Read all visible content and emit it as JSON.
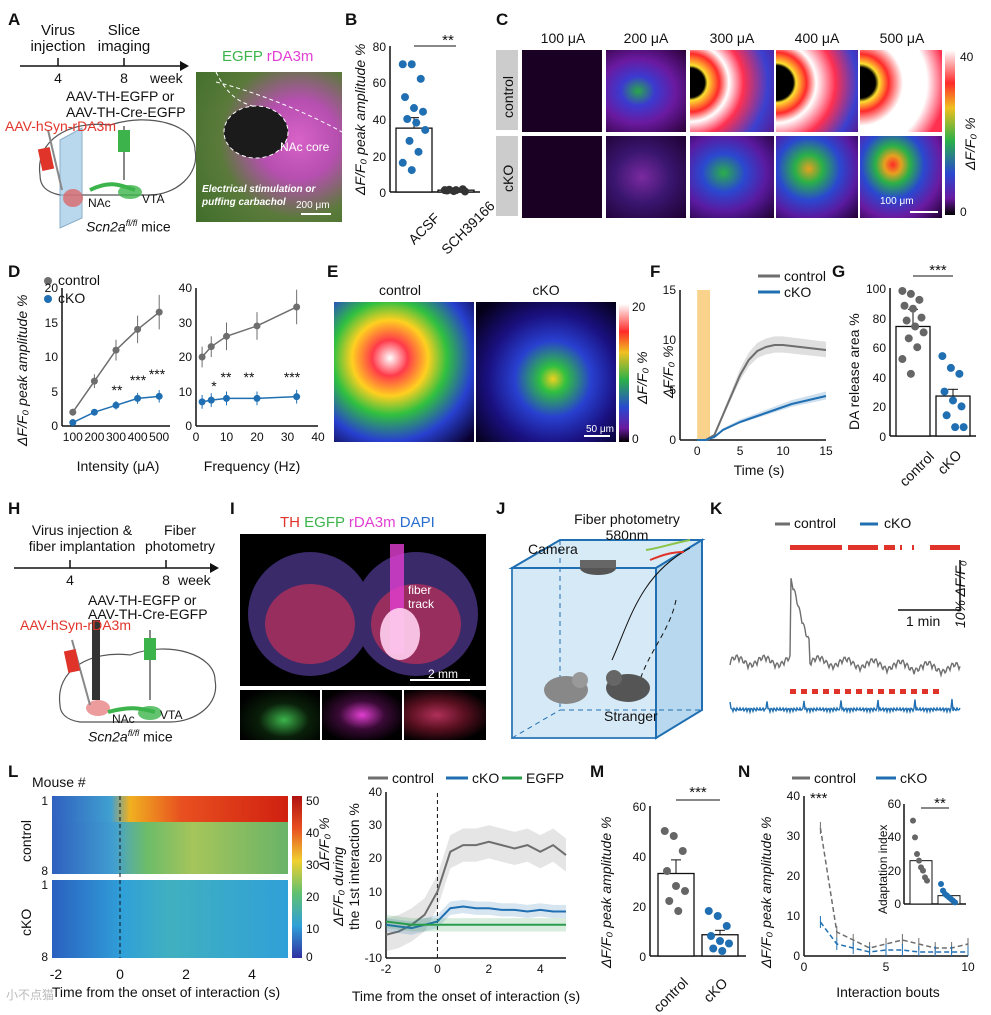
{
  "panels": [
    "A",
    "B",
    "C",
    "D",
    "E",
    "F",
    "G",
    "H",
    "I",
    "J",
    "K",
    "L",
    "M",
    "N"
  ],
  "colors": {
    "control": "#6e6e6e",
    "cko": "#1f6fb2",
    "egfp": "#2a9d4b",
    "red": "#e0342a",
    "magenta": "#e23fd2",
    "green": "#3cb44b",
    "orange": "#f8c76e"
  },
  "a": {
    "timeline": {
      "events": [
        "Virus",
        "injection",
        "Slice",
        "imaging"
      ],
      "ticks": [
        "4",
        "8"
      ],
      "unit": "week"
    },
    "virus_lines": [
      "AAV-TH-EGFP or",
      "AAV-TH-Cre-EGFP"
    ],
    "virus_r": "AAV-hSyn-rDA3m",
    "regions": [
      "NAc",
      "VTA"
    ],
    "mice": "Scn2a",
    "mice_sup": "fl/fl",
    "mice_suffix": " mice",
    "micro": {
      "title_g": "EGFP",
      "title_m": " rDA3m",
      "label": "NAc core",
      "stim": [
        "Electrical stimulation or",
        "puffing carbachol"
      ],
      "scale": "200 μm"
    }
  },
  "b": {
    "ylabel": "ΔF/F₀ peak amplitude %",
    "yticks": [
      "0",
      "20",
      "40",
      "60",
      "80"
    ],
    "groups": [
      "ACSF",
      "SCH39166"
    ],
    "sig": "**",
    "chart_data": {
      "type": "bar",
      "categories": [
        "ACSF",
        "SCH39166"
      ],
      "values": [
        35,
        1
      ],
      "ylim": [
        0,
        80
      ],
      "points": [
        [
          70,
          70,
          62,
          52,
          46,
          44,
          40,
          38,
          34,
          28,
          22,
          16,
          12
        ],
        [
          1,
          0.5,
          1.5,
          0.8,
          1,
          0.3,
          1.2
        ]
      ]
    }
  },
  "c": {
    "cols": [
      "100 μA",
      "200 μA",
      "300 μA",
      "400 μA",
      "500 μA"
    ],
    "rows": [
      "control",
      "cKO"
    ],
    "cbar": [
      "40",
      "0"
    ],
    "cbar_label": "ΔF/F₀ %",
    "scale": "100 μm"
  },
  "d": {
    "legend": [
      "control",
      "cKO"
    ],
    "ylabel": "ΔF/F₀ peak amplitude %",
    "xlabel1": "Intensity (μA)",
    "xlabel2": "Frequency (Hz)",
    "yticks1": [
      "0",
      "5",
      "10",
      "15",
      "20"
    ],
    "xticks1": [
      "100",
      "200",
      "300",
      "400",
      "500"
    ],
    "yticks2": [
      "0",
      "10",
      "20",
      "30",
      "40"
    ],
    "xticks2": [
      "0",
      "10",
      "20",
      "30",
      "40"
    ],
    "sig1": [
      "**",
      "***",
      "***"
    ],
    "sig2": [
      "*",
      "**",
      "**",
      "***"
    ],
    "chart_data": [
      {
        "type": "line",
        "x": [
          100,
          200,
          300,
          400,
          500
        ],
        "series": [
          {
            "name": "control",
            "values": [
              2,
              6.5,
              11,
              14,
              16.5
            ],
            "err": [
              0.5,
              1,
              1.5,
              2,
              2.5
            ]
          },
          {
            "name": "cKO",
            "values": [
              0.5,
              2,
              3,
              4,
              4.3
            ],
            "err": [
              0.3,
              0.4,
              0.6,
              0.8,
              0.9
            ]
          }
        ],
        "ylim": [
          0,
          20
        ]
      },
      {
        "type": "line",
        "x": [
          2,
          5,
          10,
          20,
          33
        ],
        "series": [
          {
            "name": "control",
            "values": [
              20,
              23,
              26,
              29,
              34.5
            ],
            "err": [
              3,
              3,
              4,
              4,
              5
            ]
          },
          {
            "name": "cKO",
            "values": [
              7,
              7.5,
              8,
              8,
              8.5
            ],
            "err": [
              2,
              2,
              2,
              2,
              2
            ]
          }
        ],
        "ylim": [
          0,
          40
        ]
      }
    ]
  },
  "e": {
    "titles": [
      "control",
      "cKO"
    ],
    "cbar": [
      "20",
      "0"
    ],
    "cbar_label": "ΔF/F₀ %",
    "scale": "50 μm"
  },
  "f": {
    "legend": [
      "control",
      "cKO"
    ],
    "ylabel": "ΔF/F₀ %",
    "xlabel": "Time (s)",
    "yticks": [
      "0",
      "5",
      "10",
      "15"
    ],
    "xticks": [
      "0",
      "5",
      "10",
      "15"
    ],
    "chart_data": {
      "type": "line",
      "x": [
        0,
        1,
        2,
        3,
        4,
        5,
        6,
        7,
        8,
        9,
        10,
        11,
        12,
        13,
        14,
        15
      ],
      "series": [
        {
          "name": "control",
          "values": [
            0,
            0,
            0.5,
            2.5,
            4.5,
            6.5,
            8,
            8.9,
            9.3,
            9.5,
            9.5,
            9.4,
            9.3,
            9.2,
            9.1,
            9.0
          ]
        },
        {
          "name": "cKO",
          "values": [
            0,
            0,
            0.3,
            1,
            1.4,
            1.8,
            2.1,
            2.4,
            2.7,
            3.0,
            3.3,
            3.6,
            3.8,
            4.0,
            4.2,
            4.4
          ]
        }
      ],
      "ylim": [
        0,
        15
      ],
      "xlim": [
        -2,
        15
      ],
      "stim": [
        0,
        1.5
      ]
    }
  },
  "g": {
    "ylabel": "DA release area %",
    "yticks": [
      "0",
      "20",
      "40",
      "60",
      "80",
      "100"
    ],
    "groups": [
      "control",
      "cKO"
    ],
    "sig": "***",
    "chart_data": {
      "type": "bar",
      "categories": [
        "control",
        "cKO"
      ],
      "values": [
        74,
        27
      ],
      "ylim": [
        0,
        100
      ],
      "points": [
        [
          98,
          96,
          92,
          88,
          86,
          80,
          78,
          74,
          70,
          66,
          60,
          52,
          42
        ],
        [
          54,
          46,
          42,
          30,
          24,
          20,
          14,
          6,
          6
        ]
      ]
    }
  },
  "h": {
    "timeline": {
      "events": [
        "Virus injection &",
        "fiber implantation",
        "Fiber",
        "photometry"
      ],
      "ticks": [
        "4",
        "8"
      ],
      "unit": "week"
    },
    "virus_lines": [
      "AAV-TH-EGFP or",
      "AAV-TH-Cre-EGFP"
    ],
    "virus_r": "AAV-hSyn-rDA3m",
    "regions": [
      "NAc",
      "VTA"
    ],
    "mice": "Scn2a",
    "mice_sup": "fl/fl",
    "mice_suffix": " mice"
  },
  "i": {
    "title": [
      "TH",
      "EGFP",
      "rDA3m",
      "DAPI"
    ],
    "label": [
      "fiber",
      "track"
    ],
    "scale": "2 mm"
  },
  "j": {
    "title": [
      "Fiber photometry",
      "580nm"
    ],
    "camera": "Camera",
    "stranger": "Stranger"
  },
  "k": {
    "legend": [
      "control",
      "cKO"
    ],
    "scale_y": "10% ΔF/F₀",
    "scale_x": "1 min"
  },
  "l": {
    "mouse": "Mouse #",
    "rows": [
      "control",
      "cKO"
    ],
    "row_ticks": [
      "1",
      "8",
      "1",
      "8"
    ],
    "cbar": [
      "50",
      "40",
      "30",
      "20",
      "10",
      "0"
    ],
    "cbar_label": "ΔF/F₀ %",
    "xticks": [
      "-2",
      "0",
      "2",
      "4"
    ],
    "xlabel": "Time from the onset of interaction (s)",
    "legend": [
      "control",
      "cKO",
      "EGFP"
    ],
    "ylabel": [
      "ΔF/F₀ during",
      "the 1st interaction %"
    ],
    "yticks": [
      "-10",
      "0",
      "10",
      "20",
      "30",
      "40"
    ],
    "chart_data": {
      "type": "line",
      "x": [
        -2,
        -1.5,
        -1,
        -0.5,
        0,
        0.5,
        1,
        1.5,
        2,
        2.5,
        3,
        3.5,
        4,
        4.5,
        5
      ],
      "series": [
        {
          "name": "control",
          "values": [
            -3,
            -2,
            0,
            3,
            10,
            22,
            24,
            24,
            25,
            24,
            23,
            24,
            22,
            24,
            21
          ]
        },
        {
          "name": "cKO",
          "values": [
            0,
            -0.5,
            -1,
            0,
            1,
            5,
            5.5,
            5,
            5,
            4.5,
            4.5,
            4,
            4.5,
            4,
            4
          ]
        },
        {
          "name": "EGFP",
          "values": [
            1,
            0.5,
            0,
            0,
            0,
            0,
            0,
            0,
            0,
            0,
            0,
            0,
            0,
            0,
            0
          ]
        }
      ],
      "ylim": [
        -10,
        40
      ]
    }
  },
  "m": {
    "ylabel": "ΔF/F₀ peak amplitude %",
    "yticks": [
      "0",
      "20",
      "40",
      "60"
    ],
    "groups": [
      "control",
      "cKO"
    ],
    "sig": "***",
    "chart_data": {
      "type": "bar",
      "categories": [
        "control",
        "cKO"
      ],
      "values": [
        33,
        8.5
      ],
      "ylim": [
        0,
        60
      ],
      "points": [
        [
          50,
          48,
          42,
          34,
          28,
          26,
          22,
          18
        ],
        [
          18,
          16,
          12,
          8,
          6,
          5,
          3,
          2
        ]
      ]
    }
  },
  "n": {
    "legend": [
      "control",
      "cKO"
    ],
    "ylabel": "ΔF/F₀ peak amplitude %",
    "xlabel": "Interaction bouts",
    "yticks": [
      "0",
      "10",
      "20",
      "30",
      "40"
    ],
    "xticks": [
      "0",
      "5",
      "10"
    ],
    "sig": "***",
    "inset": {
      "ylabel": "Adaptation index",
      "yticks": [
        "0",
        "20",
        "40",
        "60"
      ],
      "sig": "**"
    },
    "chart_data": [
      {
        "type": "line",
        "x": [
          1,
          2,
          3,
          4,
          5,
          6,
          7,
          8,
          9,
          10
        ],
        "series": [
          {
            "name": "control",
            "values": [
              32,
              6,
              4,
              2,
              3,
              4,
              3,
              2,
              2,
              3
            ]
          },
          {
            "name": "cKO",
            "values": [
              8.5,
              3,
              2,
              1,
              1.5,
              1.5,
              1,
              1,
              1,
              1
            ]
          }
        ],
        "ylim": [
          0,
          40
        ]
      },
      {
        "type": "bar",
        "categories": [
          "control",
          "cKO"
        ],
        "values": [
          26,
          5
        ],
        "ylim": [
          0,
          60
        ]
      }
    ]
  },
  "watermark": "小不点猫"
}
